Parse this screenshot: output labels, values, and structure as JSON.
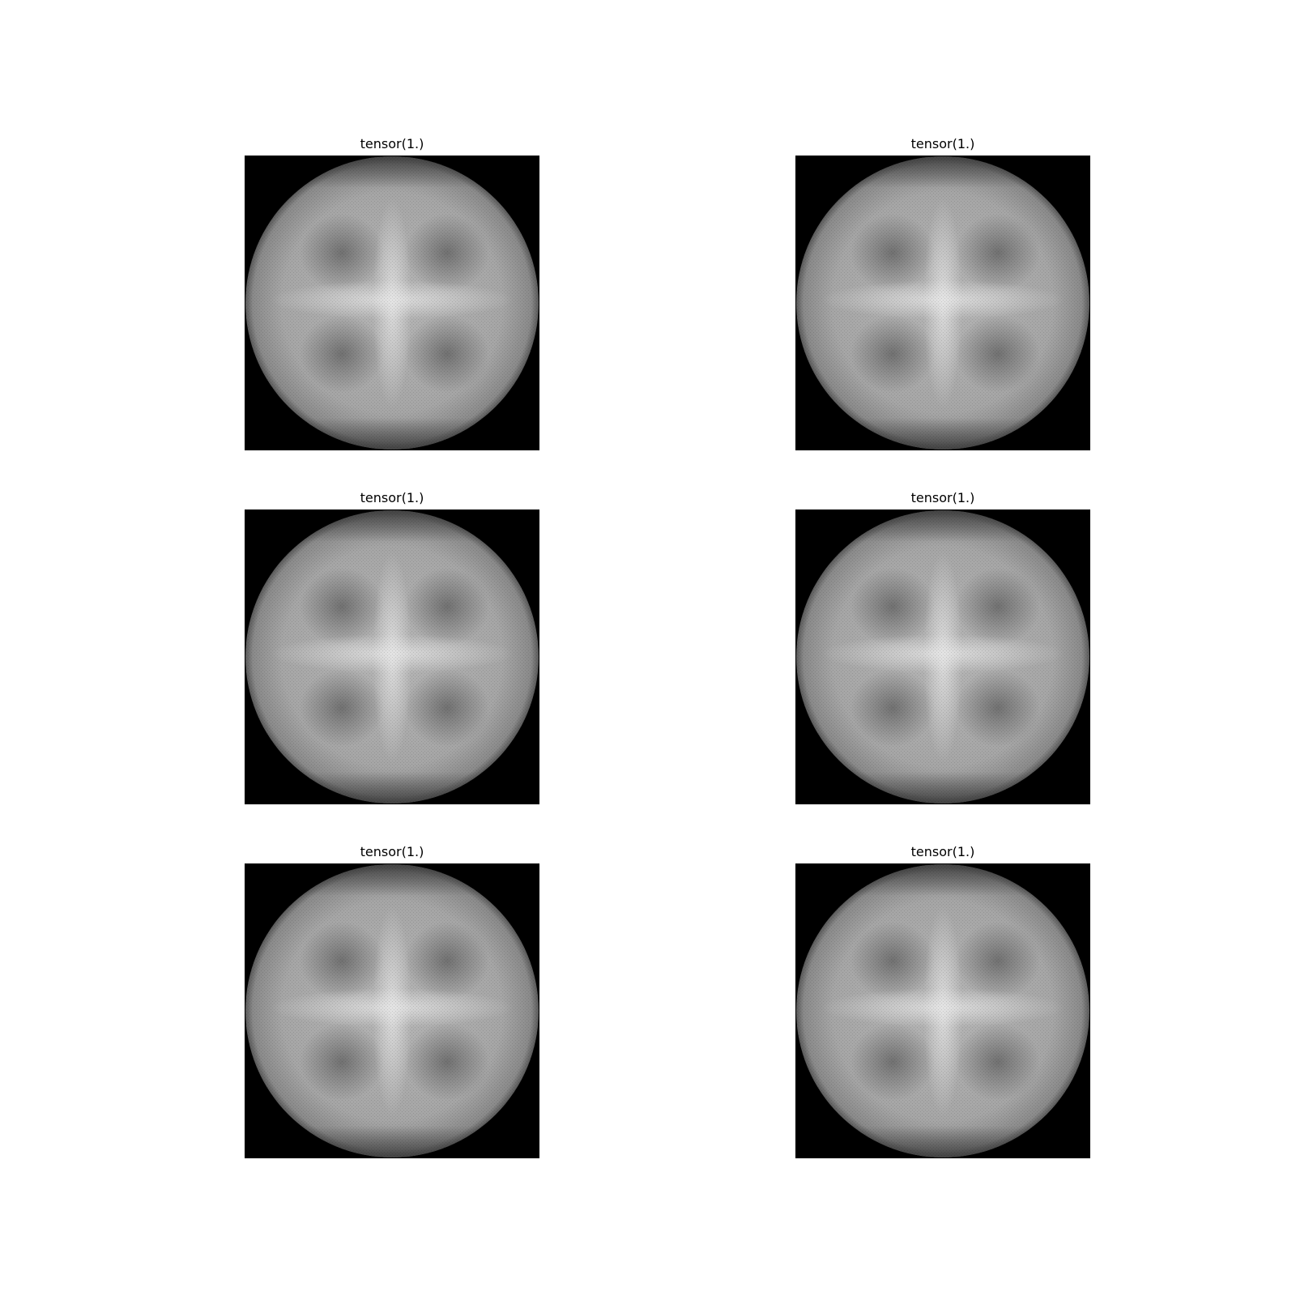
{
  "panels": [
    {
      "title": "tensor(1.)"
    },
    {
      "title": "tensor(1.)"
    },
    {
      "title": "tensor(1.)"
    },
    {
      "title": "tensor(1.)"
    },
    {
      "title": "tensor(1.)"
    },
    {
      "title": "tensor(1.)"
    }
  ]
}
